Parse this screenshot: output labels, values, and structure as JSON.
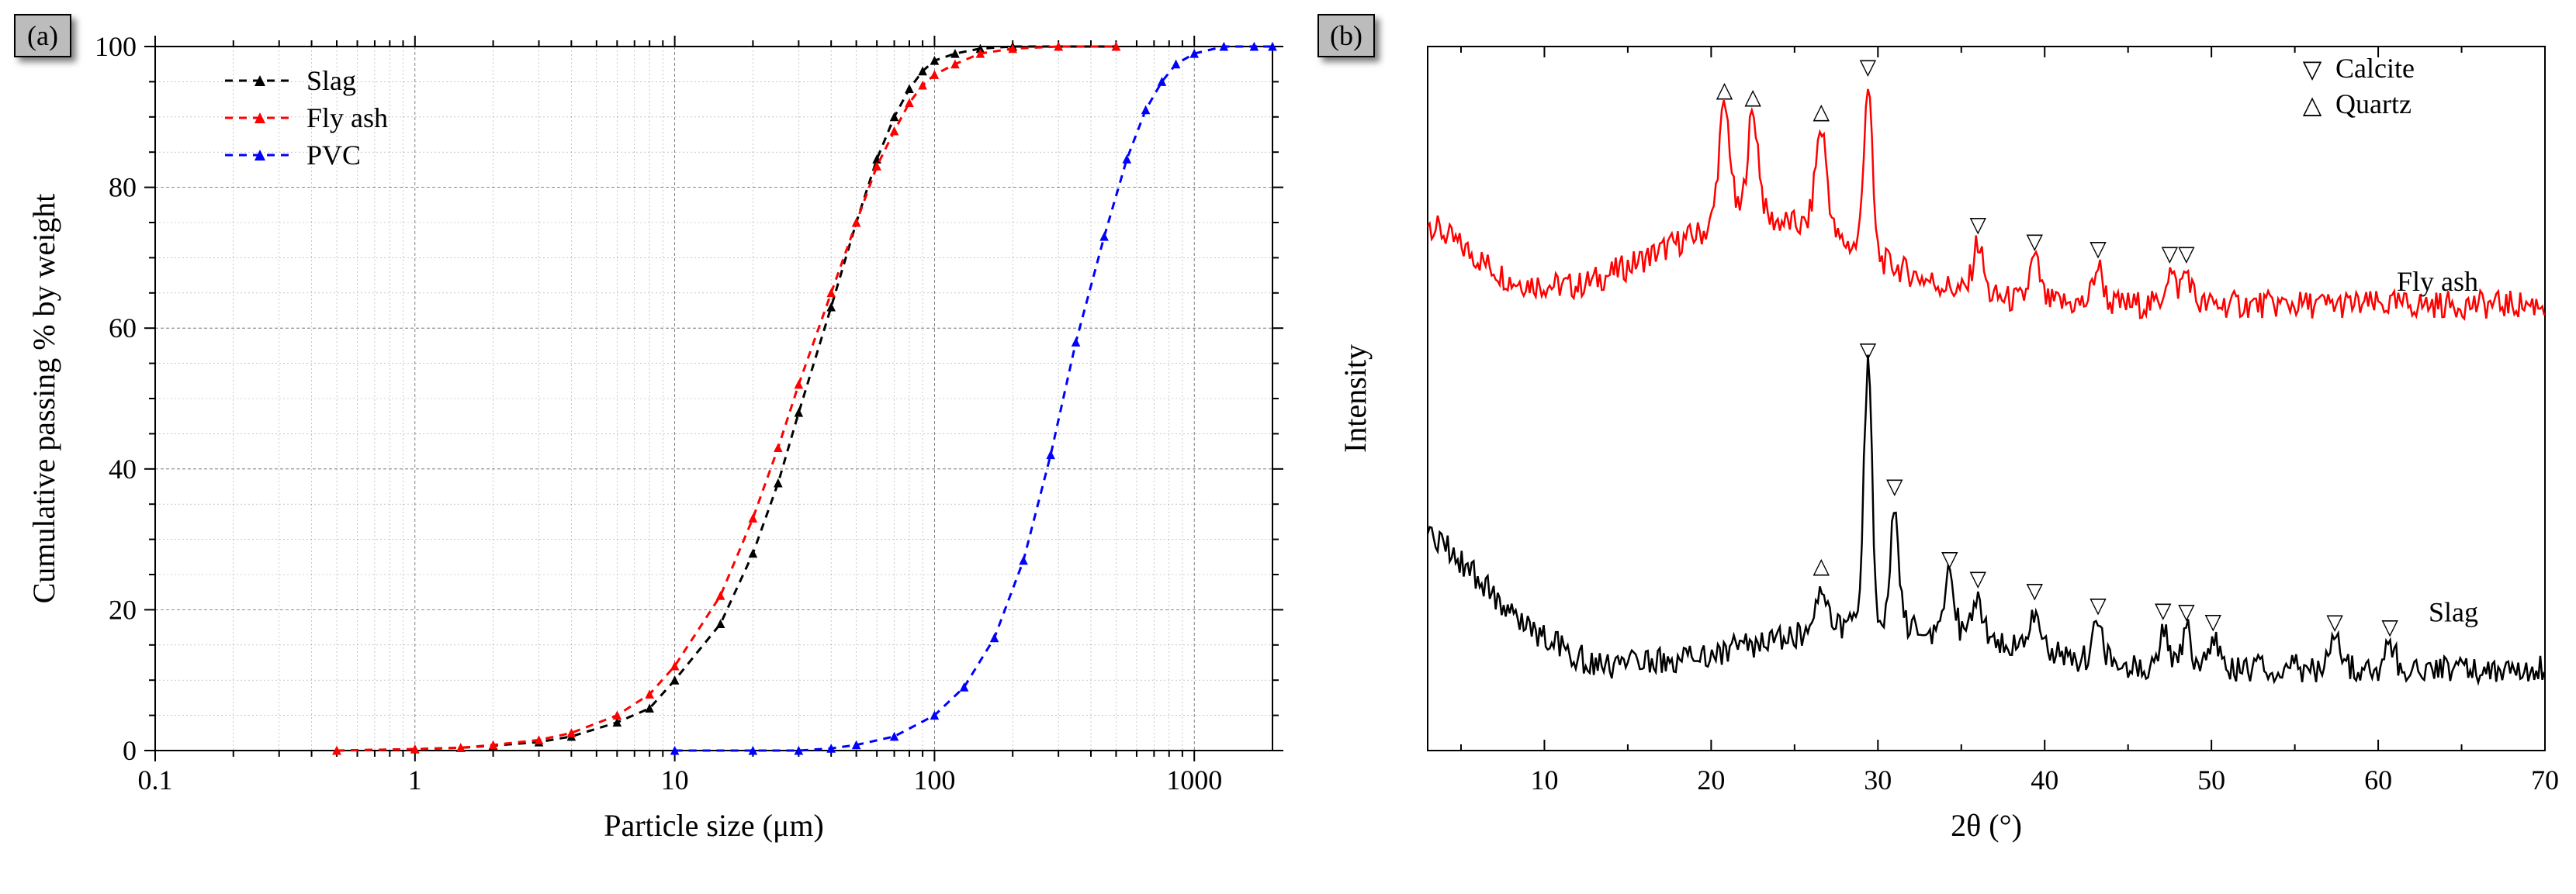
{
  "panelA": {
    "badge": "(a)",
    "xlabel": "Particle size (μm)",
    "ylabel": "Cumulative passing % by weight",
    "xlim": [
      0.1,
      2000
    ],
    "ylim": [
      0,
      100
    ],
    "xscale": "log",
    "xticks": [
      0.1,
      1,
      10,
      100,
      1000
    ],
    "xtick_labels": [
      "0.1",
      "1",
      "10",
      "100",
      "1000"
    ],
    "yticks": [
      0,
      20,
      40,
      60,
      80,
      100
    ],
    "ytick_labels": [
      "0",
      "20",
      "40",
      "60",
      "80",
      "100"
    ],
    "plot_bg": "#ffffff",
    "axis_color": "#000000",
    "grid_color": "#000000",
    "label_fontsize": 40,
    "tick_fontsize": 36,
    "legend_fontsize": 36,
    "legend_position": "upper-left-inset",
    "line_width": 3,
    "line_dash": [
      10,
      8
    ],
    "marker_size": 5,
    "series": [
      {
        "name": "Slag",
        "color": "#000000",
        "marker": "triangle",
        "x": [
          0.5,
          1,
          1.5,
          2,
          3,
          4,
          6,
          8,
          10,
          15,
          20,
          25,
          30,
          40,
          50,
          60,
          70,
          80,
          90,
          100,
          120,
          150,
          200,
          300,
          500
        ],
        "y": [
          0,
          0.2,
          0.4,
          0.7,
          1.2,
          2,
          4,
          6,
          10,
          18,
          28,
          38,
          48,
          63,
          75,
          84,
          90,
          94,
          96.5,
          98,
          99,
          99.7,
          100,
          100,
          100
        ]
      },
      {
        "name": "Fly ash",
        "color": "#ff0000",
        "marker": "triangle",
        "x": [
          0.5,
          1,
          1.5,
          2,
          3,
          4,
          6,
          8,
          10,
          15,
          20,
          25,
          30,
          40,
          50,
          60,
          70,
          80,
          90,
          100,
          120,
          150,
          200,
          300,
          500
        ],
        "y": [
          0,
          0.2,
          0.4,
          0.8,
          1.5,
          2.5,
          5,
          8,
          12,
          22,
          33,
          43,
          52,
          65,
          75,
          83,
          88,
          92,
          94.5,
          96,
          97.5,
          99,
          99.7,
          100,
          100
        ]
      },
      {
        "name": "PVC",
        "color": "#0000ff",
        "marker": "triangle",
        "x": [
          10,
          20,
          30,
          40,
          50,
          70,
          100,
          130,
          170,
          220,
          280,
          350,
          450,
          550,
          650,
          750,
          850,
          1000,
          1300,
          1700,
          2000
        ],
        "y": [
          0,
          0,
          0,
          0.3,
          0.8,
          2,
          5,
          9,
          16,
          27,
          42,
          58,
          73,
          84,
          91,
          95,
          97.5,
          99,
          100,
          100,
          100
        ]
      }
    ]
  },
  "panelB": {
    "badge": "(b)",
    "xlabel": "2θ (°)",
    "ylabel": "Intensity",
    "xlim": [
      3,
      70
    ],
    "ylim": [
      0,
      300
    ],
    "xticks": [
      10,
      20,
      30,
      40,
      50,
      60,
      70
    ],
    "xtick_labels": [
      "10",
      "20",
      "30",
      "40",
      "50",
      "60",
      "70"
    ],
    "plot_bg": "#ffffff",
    "axis_color": "#000000",
    "label_fontsize": 40,
    "tick_fontsize": 36,
    "noise_amplitude": 6,
    "line_width": 2.5,
    "legend": {
      "items": [
        {
          "symbol": "▽",
          "label": "Calcite"
        },
        {
          "symbol": "△",
          "label": "Quartz"
        }
      ],
      "position": "upper-right",
      "fontsize": 36
    },
    "traces": [
      {
        "name": "Fly ash",
        "color": "#ff0000",
        "baseline": 190,
        "label_x": 66,
        "label_y": 196,
        "hump": {
          "center": 23,
          "halfwidth": 9,
          "height": 36
        },
        "start_drop": {
          "from": 225,
          "to": 198,
          "until": 8
        },
        "peaks": [
          {
            "x": 20.8,
            "height": 50,
            "width": 0.7,
            "marker": "△"
          },
          {
            "x": 22.5,
            "height": 45,
            "width": 0.7,
            "marker": "△"
          },
          {
            "x": 26.6,
            "height": 44,
            "width": 0.7,
            "marker": "△"
          },
          {
            "x": 29.4,
            "height": 72,
            "width": 0.5,
            "marker": "▽"
          },
          {
            "x": 36.0,
            "height": 22,
            "width": 0.6,
            "marker": "▽"
          },
          {
            "x": 39.4,
            "height": 18,
            "width": 0.6,
            "marker": "▽"
          },
          {
            "x": 43.2,
            "height": 16,
            "width": 0.6,
            "marker": "▽"
          },
          {
            "x": 47.5,
            "height": 14,
            "width": 0.6,
            "marker": "▽"
          },
          {
            "x": 48.5,
            "height": 14,
            "width": 0.6,
            "marker": "▽"
          }
        ]
      },
      {
        "name": "Slag",
        "color": "#000000",
        "baseline": 35,
        "label_x": 66,
        "label_y": 55,
        "hump": {
          "center": 30,
          "halfwidth": 10,
          "height": 18
        },
        "start_drop": {
          "from": 95,
          "to": 52,
          "until": 9
        },
        "peaks": [
          {
            "x": 26.6,
            "height": 20,
            "width": 0.7,
            "marker": "△"
          },
          {
            "x": 29.4,
            "height": 110,
            "width": 0.5,
            "marker": "▽"
          },
          {
            "x": 31.0,
            "height": 52,
            "width": 0.5,
            "marker": "▽"
          },
          {
            "x": 34.3,
            "height": 24,
            "width": 0.6,
            "marker": "▽"
          },
          {
            "x": 36.0,
            "height": 18,
            "width": 0.6,
            "marker": "▽"
          },
          {
            "x": 39.4,
            "height": 18,
            "width": 0.6,
            "marker": "▽"
          },
          {
            "x": 43.2,
            "height": 16,
            "width": 0.6,
            "marker": "▽"
          },
          {
            "x": 47.1,
            "height": 16,
            "width": 0.5,
            "marker": "▽"
          },
          {
            "x": 48.5,
            "height": 16,
            "width": 0.5,
            "marker": "▽"
          },
          {
            "x": 50.1,
            "height": 12,
            "width": 0.6,
            "marker": "▽"
          },
          {
            "x": 57.4,
            "height": 12,
            "width": 0.6,
            "marker": "▽"
          },
          {
            "x": 60.7,
            "height": 10,
            "width": 0.6,
            "marker": "▽"
          }
        ]
      }
    ]
  }
}
